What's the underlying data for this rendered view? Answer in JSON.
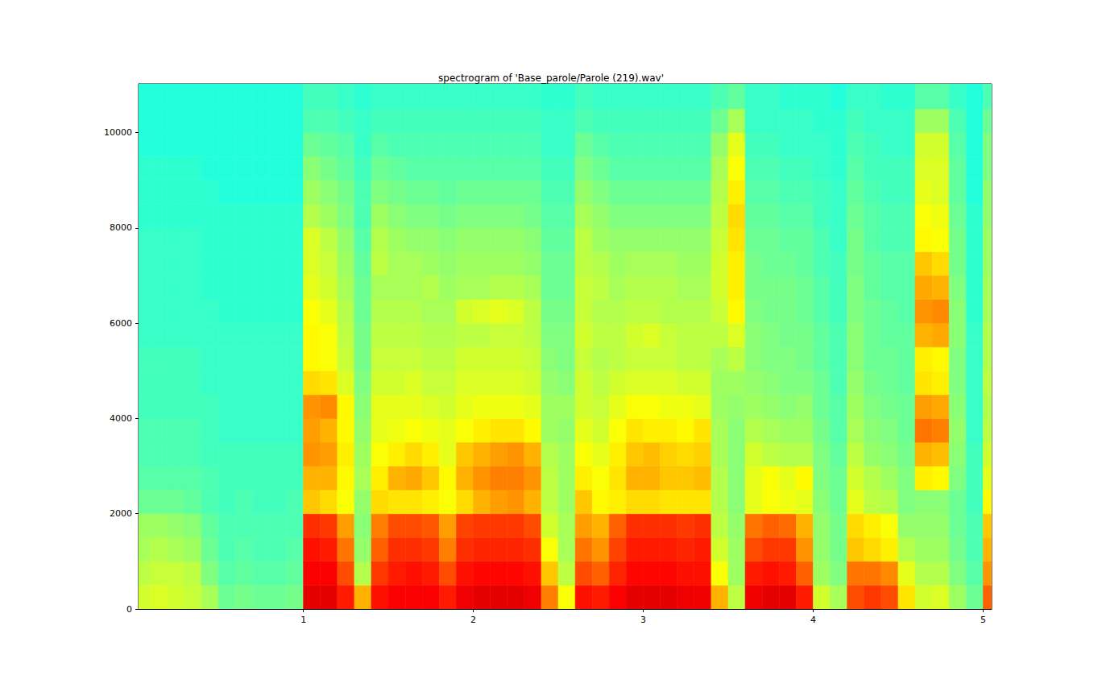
{
  "chart_data": {
    "type": "heatmap",
    "title": "spectrogram of 'Base_parole/Parole (219).wav'",
    "xlim": [
      0.03,
      5.05
    ],
    "xticks": [
      1,
      2,
      3,
      4,
      5
    ],
    "ylim": [
      0,
      11025
    ],
    "yticks": [
      0,
      2000,
      4000,
      6000,
      8000,
      10000
    ],
    "zlim": [
      0,
      10
    ],
    "time_bins": [
      0.0,
      0.1,
      0.2,
      0.3,
      0.4,
      0.5,
      0.6,
      0.7,
      0.8,
      0.9,
      1.0,
      1.1,
      1.2,
      1.3,
      1.4,
      1.5,
      1.6,
      1.7,
      1.8,
      1.9,
      2.0,
      2.1,
      2.2,
      2.3,
      2.4,
      2.5,
      2.6,
      2.7,
      2.8,
      2.9,
      3.0,
      3.1,
      3.2,
      3.3,
      3.4,
      3.5,
      3.6,
      3.7,
      3.8,
      3.9,
      4.0,
      4.1,
      4.2,
      4.3,
      4.4,
      4.5,
      4.6,
      4.7,
      4.8,
      4.9,
      5.0,
      5.1
    ],
    "freq_bins": [
      0,
      500,
      1000,
      1500,
      2000,
      2500,
      3000,
      3500,
      4000,
      4500,
      5000,
      5500,
      6000,
      6500,
      7000,
      7500,
      8000,
      8500,
      9000,
      9500,
      10000,
      10500,
      11025
    ],
    "cells": [
      [
        5.8,
        5.6,
        5.4,
        5.3,
        4.8,
        4.6,
        4.5,
        4.5,
        4.4,
        4.4,
        4.4,
        4.3,
        4.3,
        4.3,
        4.3,
        4.3,
        4.2,
        4.2,
        4.2,
        4.1,
        4.1,
        4.1
      ],
      [
        5.9,
        5.7,
        5.5,
        5.3,
        4.8,
        4.6,
        4.5,
        4.5,
        4.4,
        4.4,
        4.4,
        4.3,
        4.3,
        4.3,
        4.3,
        4.3,
        4.2,
        4.2,
        4.2,
        4.1,
        4.1,
        4.1
      ],
      [
        5.8,
        5.7,
        5.4,
        5.2,
        4.8,
        4.6,
        4.5,
        4.5,
        4.4,
        4.4,
        4.4,
        4.3,
        4.3,
        4.3,
        4.3,
        4.3,
        4.2,
        4.2,
        4.2,
        4.1,
        4.1,
        4.1
      ],
      [
        5.7,
        5.6,
        5.3,
        5.1,
        4.7,
        4.6,
        4.5,
        4.5,
        4.4,
        4.4,
        4.4,
        4.3,
        4.3,
        4.3,
        4.3,
        4.3,
        4.2,
        4.2,
        4.2,
        4.1,
        4.1,
        4.1
      ],
      [
        5.4,
        5.0,
        4.8,
        4.7,
        4.5,
        4.5,
        4.4,
        4.4,
        4.4,
        4.3,
        4.3,
        4.3,
        4.3,
        4.2,
        4.2,
        4.2,
        4.2,
        4.2,
        4.1,
        4.1,
        4.1,
        4.1
      ],
      [
        4.8,
        4.6,
        4.5,
        4.5,
        4.4,
        4.4,
        4.4,
        4.3,
        4.3,
        4.3,
        4.3,
        4.3,
        4.2,
        4.2,
        4.2,
        4.2,
        4.2,
        4.1,
        4.1,
        4.1,
        4.1,
        4.1
      ],
      [
        4.9,
        4.7,
        4.6,
        4.5,
        4.5,
        4.4,
        4.4,
        4.3,
        4.3,
        4.3,
        4.3,
        4.3,
        4.2,
        4.2,
        4.2,
        4.2,
        4.2,
        4.1,
        4.1,
        4.1,
        4.1,
        4.1
      ],
      [
        4.8,
        4.6,
        4.5,
        4.5,
        4.4,
        4.4,
        4.4,
        4.3,
        4.3,
        4.3,
        4.3,
        4.3,
        4.2,
        4.2,
        4.2,
        4.2,
        4.2,
        4.1,
        4.1,
        4.1,
        4.1,
        4.1
      ],
      [
        4.8,
        4.6,
        4.5,
        4.5,
        4.4,
        4.4,
        4.4,
        4.3,
        4.3,
        4.3,
        4.3,
        4.3,
        4.2,
        4.2,
        4.2,
        4.2,
        4.2,
        4.1,
        4.1,
        4.1,
        4.1,
        4.1
      ],
      [
        4.9,
        4.7,
        4.6,
        4.5,
        4.5,
        4.4,
        4.4,
        4.3,
        4.3,
        4.3,
        4.3,
        4.3,
        4.2,
        4.2,
        4.2,
        4.2,
        4.2,
        4.1,
        4.1,
        4.1,
        4.1,
        4.1
      ],
      [
        9.0,
        8.8,
        8.6,
        8.3,
        6.8,
        7.0,
        7.3,
        7.2,
        7.3,
        6.6,
        6.3,
        6.3,
        6.2,
        6.0,
        5.9,
        5.9,
        5.5,
        5.3,
        5.1,
        4.8,
        4.5,
        4.4
      ],
      [
        9.0,
        8.8,
        8.5,
        8.2,
        6.6,
        7.0,
        7.2,
        7.0,
        7.4,
        6.5,
        6.2,
        6.2,
        6.0,
        5.8,
        5.7,
        5.6,
        5.3,
        5.1,
        4.9,
        4.7,
        4.5,
        4.4
      ],
      [
        8.5,
        8.0,
        7.6,
        7.2,
        6.2,
        6.3,
        6.4,
        6.3,
        6.3,
        5.9,
        5.7,
        5.6,
        5.5,
        5.4,
        5.3,
        5.2,
        5.0,
        4.9,
        4.7,
        4.6,
        4.4,
        4.3
      ],
      [
        7.0,
        5.5,
        5.2,
        5.1,
        5.2,
        5.4,
        5.3,
        5.2,
        5.1,
        5.0,
        4.9,
        4.9,
        4.8,
        4.8,
        4.7,
        4.6,
        4.5,
        4.5,
        4.4,
        4.3,
        4.3,
        4.2
      ],
      [
        8.6,
        8.2,
        7.8,
        7.5,
        6.6,
        6.4,
        6.2,
        6.0,
        6.0,
        5.8,
        5.7,
        5.6,
        5.5,
        5.4,
        5.6,
        5.5,
        5.3,
        5.0,
        4.8,
        4.6,
        4.4,
        4.3
      ],
      [
        8.8,
        8.5,
        8.3,
        8.0,
        6.5,
        7.0,
        6.4,
        6.1,
        6.0,
        5.8,
        5.7,
        5.6,
        5.5,
        5.4,
        5.4,
        5.3,
        5.1,
        4.9,
        4.7,
        4.5,
        4.4,
        4.3
      ],
      [
        8.8,
        8.6,
        8.3,
        8.0,
        6.5,
        7.1,
        6.6,
        6.2,
        6.0,
        5.9,
        5.7,
        5.6,
        5.5,
        5.4,
        5.4,
        5.2,
        5.0,
        4.8,
        4.6,
        4.5,
        4.4,
        4.3
      ],
      [
        8.8,
        8.5,
        8.2,
        7.9,
        6.4,
        6.8,
        6.4,
        6.1,
        5.9,
        5.7,
        5.6,
        5.5,
        5.4,
        5.5,
        5.3,
        5.2,
        5.0,
        4.8,
        4.6,
        4.5,
        4.4,
        4.3
      ],
      [
        8.5,
        8.0,
        7.5,
        7.2,
        6.2,
        6.3,
        6.0,
        6.0,
        5.8,
        5.7,
        5.6,
        5.5,
        5.4,
        5.3,
        5.2,
        5.1,
        4.9,
        4.7,
        4.6,
        4.5,
        4.4,
        4.3
      ],
      [
        8.9,
        8.6,
        8.3,
        8.1,
        6.6,
        7.0,
        6.8,
        6.2,
        6.0,
        5.9,
        5.8,
        5.6,
        5.8,
        5.4,
        5.3,
        5.2,
        5.0,
        4.8,
        4.6,
        4.5,
        4.4,
        4.3
      ],
      [
        9.0,
        8.7,
        8.4,
        8.2,
        7.0,
        7.3,
        7.0,
        6.4,
        6.1,
        5.9,
        5.8,
        5.6,
        5.9,
        5.4,
        5.3,
        5.2,
        5.0,
        4.8,
        4.6,
        4.5,
        4.4,
        4.3
      ],
      [
        9.0,
        8.7,
        8.4,
        8.2,
        7.2,
        7.5,
        7.2,
        6.5,
        6.1,
        5.9,
        5.8,
        5.7,
        6.0,
        5.5,
        5.3,
        5.2,
        5.0,
        4.8,
        4.6,
        4.5,
        4.4,
        4.3
      ],
      [
        9.0,
        8.7,
        8.4,
        8.2,
        7.3,
        7.5,
        7.3,
        6.5,
        6.1,
        5.9,
        5.8,
        5.7,
        5.9,
        5.5,
        5.3,
        5.2,
        5.0,
        4.8,
        4.6,
        4.5,
        4.4,
        4.3
      ],
      [
        8.9,
        8.6,
        8.3,
        8.0,
        7.0,
        7.3,
        7.0,
        6.3,
        6.0,
        5.8,
        5.7,
        5.6,
        5.6,
        5.4,
        5.2,
        5.1,
        4.9,
        4.8,
        4.6,
        4.5,
        4.4,
        4.3
      ],
      [
        7.5,
        6.8,
        6.2,
        5.8,
        5.6,
        5.6,
        5.5,
        5.3,
        5.3,
        5.2,
        5.1,
        5.0,
        4.9,
        4.8,
        4.8,
        4.7,
        4.6,
        4.5,
        4.4,
        4.3,
        4.3,
        4.2
      ],
      [
        6.2,
        5.6,
        5.4,
        5.4,
        5.3,
        5.3,
        5.3,
        5.2,
        5.3,
        5.1,
        5.0,
        5.0,
        4.9,
        4.8,
        4.8,
        4.7,
        4.6,
        4.5,
        4.4,
        4.3,
        4.3,
        4.2
      ],
      [
        8.6,
        8.0,
        7.6,
        7.2,
        6.8,
        6.4,
        6.2,
        6.0,
        5.8,
        5.8,
        5.7,
        5.8,
        5.7,
        5.7,
        5.6,
        5.6,
        5.4,
        5.2,
        5.0,
        4.8,
        4.5,
        4.4
      ],
      [
        8.5,
        7.8,
        7.3,
        7.0,
        6.3,
        6.2,
        6.0,
        5.8,
        5.7,
        5.6,
        5.5,
        5.6,
        5.5,
        5.6,
        5.5,
        5.3,
        5.2,
        5.0,
        4.8,
        4.6,
        4.4,
        4.3
      ],
      [
        8.8,
        8.4,
        8.1,
        7.8,
        6.4,
        6.5,
        6.4,
        6.2,
        6.0,
        5.8,
        5.6,
        5.6,
        5.5,
        5.4,
        5.3,
        5.2,
        5.0,
        4.8,
        4.6,
        4.5,
        4.4,
        4.3
      ],
      [
        9.0,
        8.7,
        8.5,
        8.3,
        6.6,
        7.0,
        6.8,
        6.5,
        6.2,
        5.9,
        5.7,
        5.8,
        5.6,
        5.5,
        5.4,
        5.2,
        5.0,
        4.8,
        4.6,
        4.5,
        4.4,
        4.3
      ],
      [
        9.0,
        8.7,
        8.5,
        8.3,
        6.6,
        7.0,
        6.9,
        6.4,
        6.2,
        5.9,
        5.7,
        5.9,
        5.6,
        5.5,
        5.4,
        5.2,
        5.0,
        4.8,
        4.6,
        4.5,
        4.4,
        4.3
      ],
      [
        9.0,
        8.7,
        8.5,
        8.3,
        6.5,
        6.8,
        6.7,
        6.4,
        6.1,
        5.9,
        5.7,
        5.7,
        5.5,
        5.5,
        5.4,
        5.2,
        5.0,
        4.8,
        4.6,
        4.5,
        4.4,
        4.3
      ],
      [
        8.9,
        8.6,
        8.4,
        8.2,
        6.5,
        6.8,
        6.6,
        6.3,
        6.1,
        5.8,
        5.6,
        5.6,
        5.5,
        5.4,
        5.3,
        5.2,
        5.0,
        4.8,
        4.6,
        4.5,
        4.4,
        4.3
      ],
      [
        8.9,
        8.6,
        8.5,
        8.3,
        6.5,
        6.9,
        6.7,
        6.5,
        6.0,
        5.8,
        5.6,
        5.6,
        5.5,
        5.4,
        5.3,
        5.2,
        5.0,
        4.8,
        4.6,
        4.5,
        4.4,
        4.3
      ],
      [
        7.0,
        6.2,
        5.8,
        5.6,
        5.5,
        5.5,
        5.4,
        5.4,
        5.3,
        5.3,
        5.4,
        5.6,
        5.7,
        5.8,
        5.8,
        5.7,
        5.6,
        5.5,
        5.4,
        5.2,
        4.8,
        4.5
      ],
      [
        5.6,
        5.3,
        5.3,
        5.2,
        5.1,
        5.1,
        5.1,
        5.1,
        5.2,
        5.3,
        5.6,
        5.9,
        6.3,
        6.4,
        6.4,
        6.5,
        6.6,
        6.4,
        6.2,
        6.0,
        5.4,
        4.7
      ],
      [
        8.9,
        8.5,
        8.0,
        7.6,
        6.0,
        6.0,
        5.8,
        5.5,
        5.3,
        5.2,
        5.1,
        5.1,
        5.0,
        4.9,
        4.9,
        4.8,
        4.7,
        4.6,
        4.5,
        4.4,
        4.3,
        4.3
      ],
      [
        9.0,
        8.6,
        8.2,
        7.8,
        6.2,
        6.2,
        5.6,
        5.4,
        5.2,
        5.1,
        5.0,
        5.0,
        4.9,
        4.9,
        4.8,
        4.8,
        4.7,
        4.6,
        4.5,
        4.4,
        4.3,
        4.3
      ],
      [
        9.0,
        8.5,
        8.2,
        7.7,
        6.1,
        6.0,
        5.5,
        5.3,
        5.1,
        5.0,
        5.0,
        4.9,
        4.9,
        4.9,
        4.8,
        4.7,
        4.6,
        4.5,
        4.4,
        4.3,
        4.3,
        4.2
      ],
      [
        8.5,
        7.8,
        7.3,
        7.0,
        6.0,
        6.3,
        5.5,
        5.3,
        5.2,
        5.0,
        4.9,
        4.9,
        4.8,
        4.8,
        4.7,
        4.7,
        4.6,
        4.5,
        4.4,
        4.3,
        4.3,
        4.2
      ],
      [
        5.8,
        5.3,
        5.2,
        5.2,
        5.1,
        5.0,
        5.0,
        4.9,
        4.8,
        4.8,
        4.7,
        4.7,
        4.6,
        4.6,
        4.5,
        4.5,
        4.4,
        4.4,
        4.3,
        4.3,
        4.2,
        4.2
      ],
      [
        5.4,
        5.0,
        4.9,
        4.9,
        4.8,
        4.8,
        4.7,
        4.6,
        4.6,
        4.5,
        4.5,
        4.5,
        4.4,
        4.4,
        4.4,
        4.3,
        4.3,
        4.3,
        4.2,
        4.2,
        4.2,
        4.1
      ],
      [
        8.0,
        7.6,
        6.8,
        6.6,
        6.0,
        5.8,
        5.6,
        5.4,
        5.3,
        5.2,
        5.1,
        5.1,
        5.0,
        5.0,
        4.9,
        4.9,
        4.8,
        4.7,
        4.6,
        4.5,
        4.4,
        4.3
      ],
      [
        8.2,
        7.6,
        6.6,
        6.4,
        5.6,
        5.5,
        5.2,
        5.1,
        5.0,
        4.9,
        4.8,
        4.8,
        4.8,
        4.7,
        4.7,
        4.6,
        4.6,
        4.5,
        4.4,
        4.4,
        4.3,
        4.3
      ],
      [
        8.0,
        7.4,
        6.4,
        6.2,
        5.5,
        5.3,
        5.1,
        5.0,
        4.9,
        4.8,
        4.8,
        4.7,
        4.7,
        4.6,
        4.6,
        4.5,
        4.5,
        4.4,
        4.4,
        4.3,
        4.3,
        4.2
      ],
      [
        6.5,
        6.0,
        5.5,
        5.2,
        5.0,
        5.0,
        4.9,
        4.8,
        4.8,
        4.7,
        4.7,
        4.7,
        4.6,
        4.6,
        4.6,
        4.5,
        4.5,
        4.4,
        4.4,
        4.3,
        4.3,
        4.2
      ],
      [
        5.8,
        5.5,
        5.3,
        5.2,
        5.1,
        6.4,
        7.0,
        7.6,
        7.2,
        6.5,
        6.4,
        7.0,
        7.3,
        7.1,
        6.8,
        6.3,
        6.2,
        6.0,
        5.9,
        5.8,
        5.3,
        4.6
      ],
      [
        5.9,
        5.5,
        5.3,
        5.2,
        5.1,
        6.3,
        6.9,
        7.5,
        7.1,
        6.4,
        6.3,
        7.1,
        7.4,
        7.0,
        6.6,
        6.2,
        6.1,
        5.9,
        5.9,
        5.8,
        5.3,
        4.6
      ],
      [
        5.3,
        5.0,
        4.9,
        4.8,
        4.8,
        5.0,
        5.1,
        5.2,
        5.1,
        5.0,
        5.0,
        5.1,
        5.1,
        5.0,
        4.9,
        4.9,
        4.8,
        4.7,
        4.7,
        4.6,
        4.5,
        4.3
      ],
      [
        4.8,
        4.6,
        4.5,
        4.5,
        4.4,
        4.4,
        4.4,
        4.3,
        4.3,
        4.3,
        4.3,
        4.3,
        4.2,
        4.2,
        4.2,
        4.2,
        4.2,
        4.1,
        4.1,
        4.1,
        4.1,
        4.1
      ],
      [
        7.8,
        7.3,
        7.0,
        6.8,
        6.3,
        6.0,
        5.8,
        5.6,
        5.5,
        5.6,
        5.5,
        5.5,
        5.4,
        5.4,
        5.3,
        5.3,
        5.2,
        5.2,
        5.0,
        5.0,
        4.8,
        4.5
      ]
    ]
  }
}
